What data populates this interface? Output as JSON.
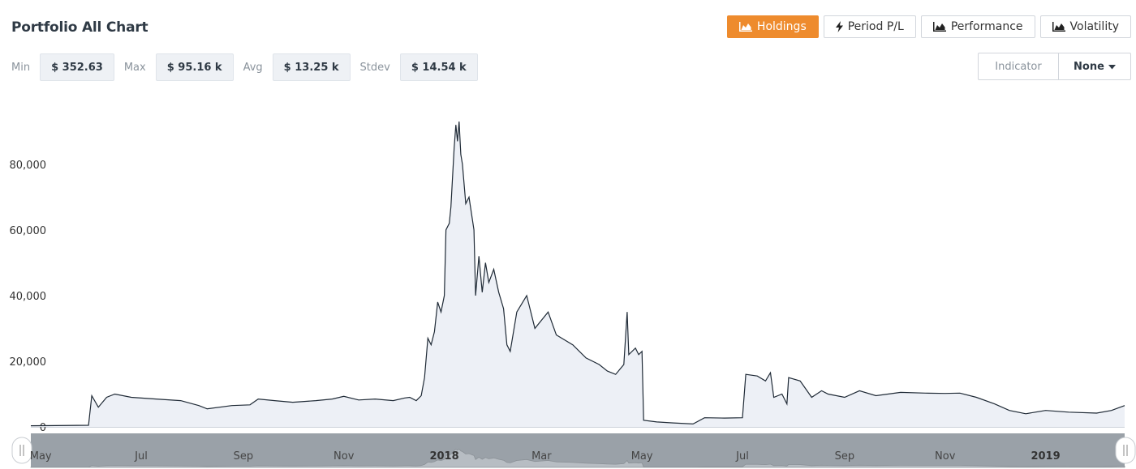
{
  "title": "Portfolio All Chart",
  "tabs": [
    {
      "label": "Holdings",
      "icon": "area-chart-icon",
      "active": true
    },
    {
      "label": "Period P/L",
      "icon": "lightning-icon",
      "active": false
    },
    {
      "label": "Performance",
      "icon": "area-chart-icon",
      "active": false
    },
    {
      "label": "Volatility",
      "icon": "area-chart-icon",
      "active": false
    }
  ],
  "stats": {
    "min_label": "Min",
    "min_value": "$ 352.63",
    "max_label": "Max",
    "max_value": "$ 95.16 k",
    "avg_label": "Avg",
    "avg_value": "$ 13.25 k",
    "stdev_label": "Stdev",
    "stdev_value": "$ 14.54 k"
  },
  "indicator": {
    "label": "Indicator",
    "value": "None"
  },
  "colors": {
    "accent": "#ee8b2d",
    "line": "#1f2a36",
    "area": "#edf0f6",
    "navigator": "#9aa1a8"
  },
  "chart_data": {
    "type": "area",
    "title": "",
    "xlabel": "",
    "ylabel": "",
    "ylim": [
      0,
      95000
    ],
    "yticks": [
      "0",
      "20,000",
      "40,000",
      "60,000",
      "80,000"
    ],
    "ytick_values": [
      0,
      20000,
      40000,
      60000,
      80000
    ],
    "xticks": [
      {
        "label": "May",
        "date": "2017-05-01"
      },
      {
        "label": "Jul",
        "date": "2017-07-01"
      },
      {
        "label": "Sep",
        "date": "2017-09-01"
      },
      {
        "label": "Nov",
        "date": "2017-11-01"
      },
      {
        "label": "2018",
        "date": "2018-01-01",
        "bold": true
      },
      {
        "label": "Mar",
        "date": "2018-03-01"
      },
      {
        "label": "May",
        "date": "2018-05-01"
      },
      {
        "label": "Jul",
        "date": "2018-07-01"
      },
      {
        "label": "Sep",
        "date": "2018-09-01"
      },
      {
        "label": "Nov",
        "date": "2018-11-01"
      },
      {
        "label": "2019",
        "date": "2019-01-01",
        "bold": true
      }
    ],
    "xlim": [
      "2017-04-25",
      "2019-02-18"
    ],
    "series": [
      {
        "points": [
          [
            "2017-04-25",
            350
          ],
          [
            "2017-05-10",
            400
          ],
          [
            "2017-05-30",
            500
          ],
          [
            "2017-06-01",
            9500
          ],
          [
            "2017-06-05",
            6000
          ],
          [
            "2017-06-10",
            9000
          ],
          [
            "2017-06-15",
            10000
          ],
          [
            "2017-06-25",
            9000
          ],
          [
            "2017-07-10",
            8500
          ],
          [
            "2017-07-25",
            8000
          ],
          [
            "2017-08-05",
            6500
          ],
          [
            "2017-08-10",
            5500
          ],
          [
            "2017-08-25",
            6500
          ],
          [
            "2017-09-05",
            6700
          ],
          [
            "2017-09-10",
            8500
          ],
          [
            "2017-09-20",
            8000
          ],
          [
            "2017-10-01",
            7500
          ],
          [
            "2017-10-15",
            8000
          ],
          [
            "2017-10-25",
            8500
          ],
          [
            "2017-11-01",
            9300
          ],
          [
            "2017-11-10",
            8200
          ],
          [
            "2017-11-20",
            8500
          ],
          [
            "2017-12-01",
            8000
          ],
          [
            "2017-12-08",
            8800
          ],
          [
            "2017-12-11",
            9000
          ],
          [
            "2017-12-15",
            8000
          ],
          [
            "2017-12-18",
            9500
          ],
          [
            "2017-12-20",
            15000
          ],
          [
            "2017-12-22",
            27000
          ],
          [
            "2017-12-24",
            25000
          ],
          [
            "2017-12-26",
            29000
          ],
          [
            "2017-12-28",
            38000
          ],
          [
            "2017-12-30",
            35000
          ],
          [
            "2018-01-01",
            40000
          ],
          [
            "2018-01-02",
            60000
          ],
          [
            "2018-01-04",
            62000
          ],
          [
            "2018-01-05",
            67000
          ],
          [
            "2018-01-07",
            85000
          ],
          [
            "2018-01-08",
            92000
          ],
          [
            "2018-01-09",
            87000
          ],
          [
            "2018-01-10",
            93000
          ],
          [
            "2018-01-11",
            83000
          ],
          [
            "2018-01-12",
            80000
          ],
          [
            "2018-01-14",
            68000
          ],
          [
            "2018-01-16",
            70000
          ],
          [
            "2018-01-19",
            60000
          ],
          [
            "2018-01-20",
            40000
          ],
          [
            "2018-01-22",
            52000
          ],
          [
            "2018-01-24",
            41000
          ],
          [
            "2018-01-26",
            50000
          ],
          [
            "2018-01-28",
            44000
          ],
          [
            "2018-01-31",
            48000
          ],
          [
            "2018-02-03",
            41000
          ],
          [
            "2018-02-06",
            36000
          ],
          [
            "2018-02-08",
            25000
          ],
          [
            "2018-02-10",
            23000
          ],
          [
            "2018-02-14",
            35000
          ],
          [
            "2018-02-20",
            40000
          ],
          [
            "2018-02-25",
            30000
          ],
          [
            "2018-03-05",
            35000
          ],
          [
            "2018-03-10",
            28000
          ],
          [
            "2018-03-20",
            25000
          ],
          [
            "2018-03-28",
            21000
          ],
          [
            "2018-04-05",
            19000
          ],
          [
            "2018-04-10",
            17000
          ],
          [
            "2018-04-15",
            16000
          ],
          [
            "2018-04-20",
            19000
          ],
          [
            "2018-04-22",
            35000
          ],
          [
            "2018-04-23",
            22000
          ],
          [
            "2018-04-27",
            24000
          ],
          [
            "2018-04-29",
            22000
          ],
          [
            "2018-05-01",
            23000
          ],
          [
            "2018-05-02",
            2000
          ],
          [
            "2018-05-10",
            1500
          ],
          [
            "2018-05-20",
            1200
          ],
          [
            "2018-06-01",
            900
          ],
          [
            "2018-06-08",
            2800
          ],
          [
            "2018-06-20",
            2700
          ],
          [
            "2018-07-01",
            2800
          ],
          [
            "2018-07-03",
            16000
          ],
          [
            "2018-07-10",
            15500
          ],
          [
            "2018-07-15",
            14000
          ],
          [
            "2018-07-18",
            16500
          ],
          [
            "2018-07-20",
            9000
          ],
          [
            "2018-07-25",
            10000
          ],
          [
            "2018-07-28",
            7000
          ],
          [
            "2018-07-29",
            15000
          ],
          [
            "2018-08-05",
            14000
          ],
          [
            "2018-08-12",
            9000
          ],
          [
            "2018-08-18",
            11000
          ],
          [
            "2018-08-22",
            10000
          ],
          [
            "2018-09-01",
            9000
          ],
          [
            "2018-09-10",
            11000
          ],
          [
            "2018-09-20",
            9500
          ],
          [
            "2018-10-05",
            10500
          ],
          [
            "2018-10-20",
            10300
          ],
          [
            "2018-11-01",
            10200
          ],
          [
            "2018-11-10",
            10300
          ],
          [
            "2018-11-20",
            9000
          ],
          [
            "2018-12-01",
            7000
          ],
          [
            "2018-12-10",
            5000
          ],
          [
            "2018-12-20",
            4000
          ],
          [
            "2019-01-01",
            5000
          ],
          [
            "2019-01-15",
            4500
          ],
          [
            "2019-02-01",
            4200
          ],
          [
            "2019-02-10",
            5000
          ],
          [
            "2019-02-18",
            6500
          ]
        ]
      }
    ]
  }
}
